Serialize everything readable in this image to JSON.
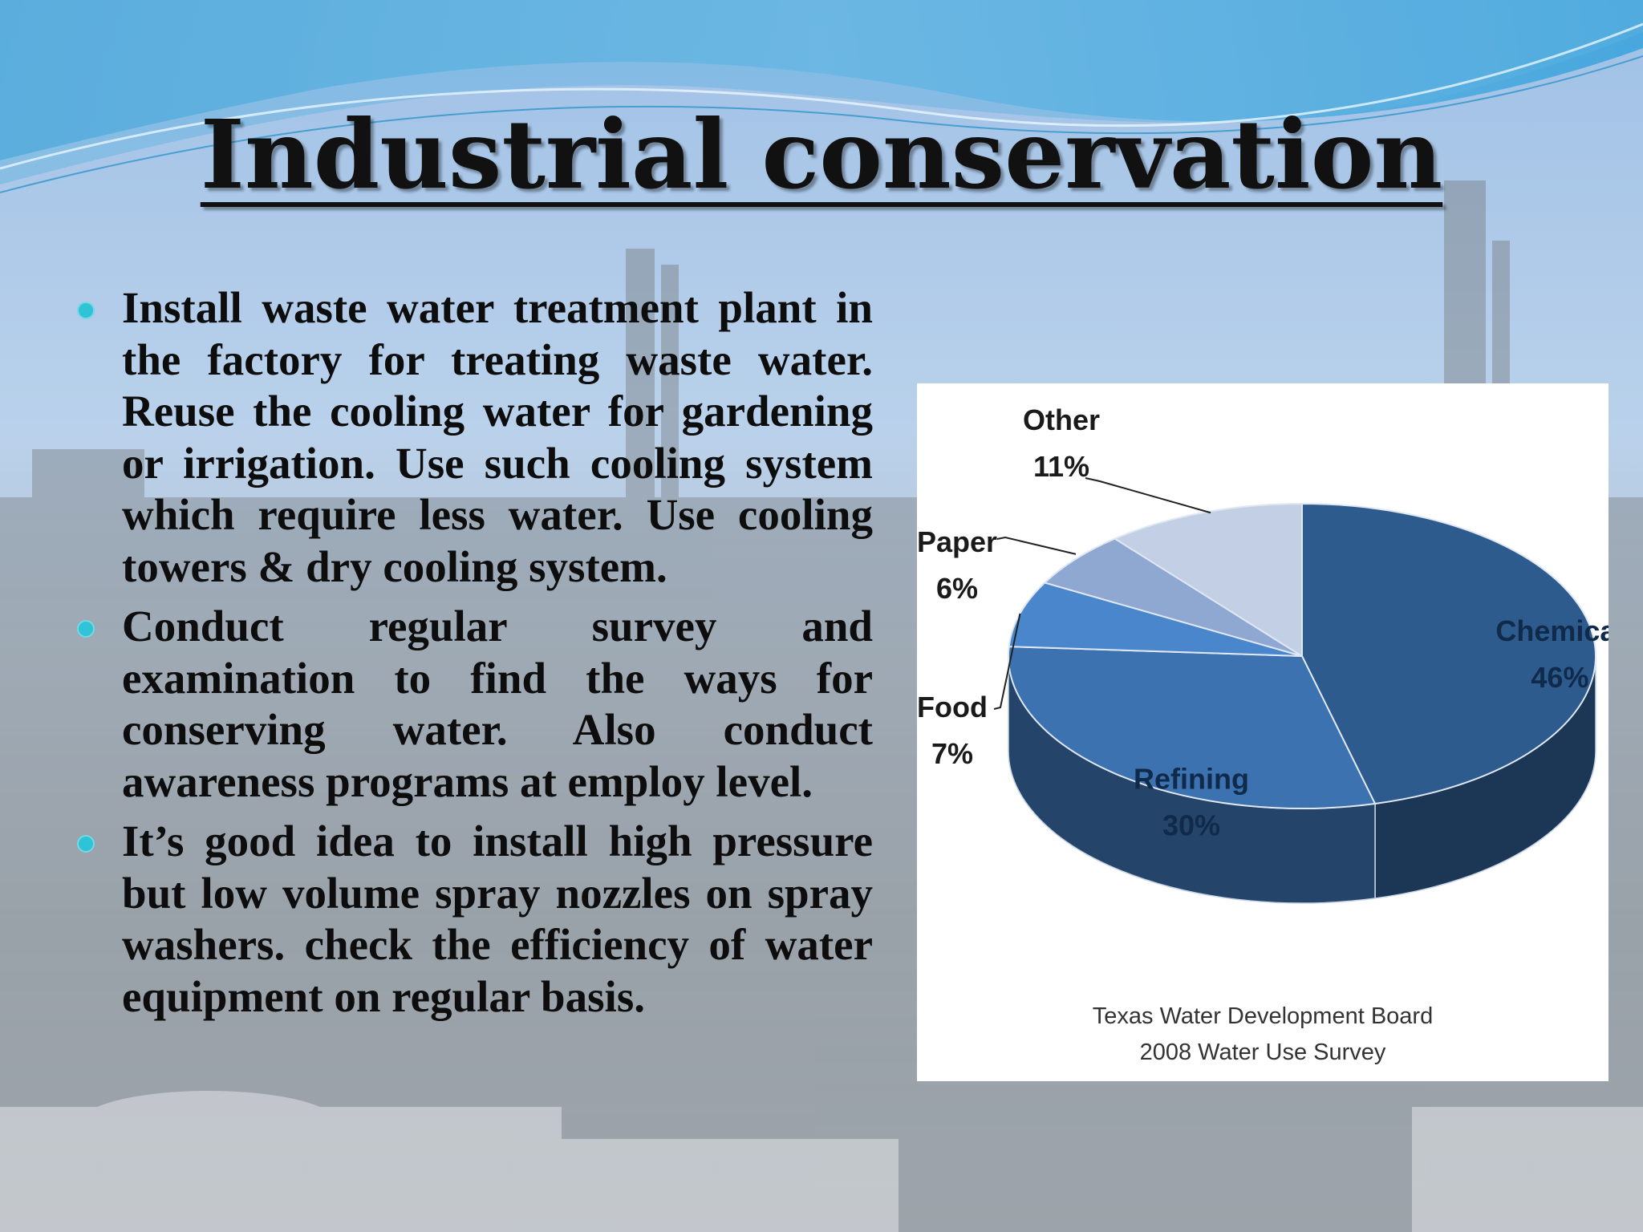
{
  "slide": {
    "title": "Industrial conservation",
    "bullets": [
      "Install waste water treatment plant in the factory for treating waste water. Reuse the cooling water for gardening or irrigation. Use such cooling system which require less water. Use cooling towers & dry cooling system.",
      "Conduct regular survey and examination to find the ways for conserving water. Also conduct awareness programs at employ level.",
      "It’s good idea to install high pressure but low volume spray nozzles on spray washers. check the efficiency of water equipment on regular basis."
    ]
  },
  "chart_data": {
    "type": "pie",
    "categories": [
      "Chemical",
      "Refining",
      "Food",
      "Paper",
      "Other"
    ],
    "values": [
      46,
      30,
      7,
      6,
      11
    ],
    "labels": [
      "46%",
      "30%",
      "7%",
      "6%",
      "11%"
    ],
    "colors": [
      "#2d5b8e",
      "#3c72b0",
      "#4a86cc",
      "#8fa8d2",
      "#c3cfe5"
    ],
    "source": [
      "Texas Water Development Board",
      "2008 Water Use Survey"
    ]
  },
  "colors": {
    "bullet": "#2ec3d6",
    "title": "#111111"
  }
}
